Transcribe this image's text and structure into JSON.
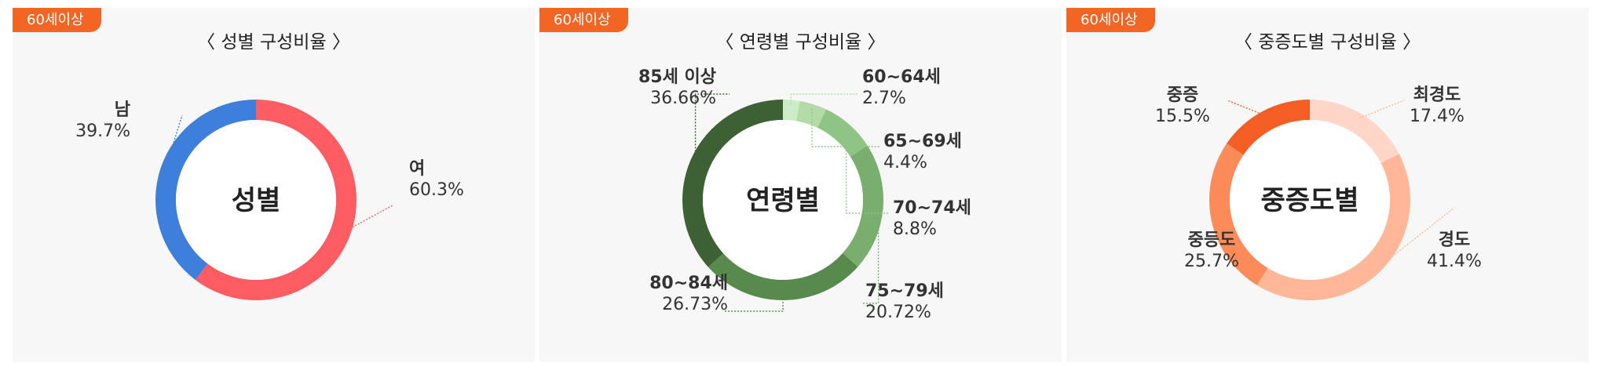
{
  "badge_label": "60세이상",
  "chart_data": [
    {
      "type": "pie",
      "title": "〈 성별 구성비율 〉",
      "center_label": "성별",
      "categories": [
        "여",
        "남"
      ],
      "values": [
        60.3,
        39.7
      ],
      "value_labels": [
        "60.3%",
        "39.7%"
      ],
      "colors": [
        "#fd5c63",
        "#3f7fdc"
      ]
    },
    {
      "type": "pie",
      "title": "〈 연령별 구성비율 〉",
      "center_label": "연령별",
      "categories": [
        "60~64세",
        "65~69세",
        "70~74세",
        "75~79세",
        "80~84세",
        "85세 이상"
      ],
      "values": [
        2.7,
        4.4,
        8.8,
        20.72,
        26.73,
        36.66
      ],
      "value_labels": [
        "2.7%",
        "4.4%",
        "8.8%",
        "20.72%",
        "26.73%",
        "36.66%"
      ],
      "colors": [
        "#cdebc6",
        "#b2dba8",
        "#8fc584",
        "#7aae6f",
        "#578a4c",
        "#3d6135"
      ]
    },
    {
      "type": "pie",
      "title": "〈 중증도별 구성비율 〉",
      "center_label": "중증도별",
      "categories": [
        "최경도",
        "경도",
        "중등도",
        "중증"
      ],
      "values": [
        17.4,
        41.4,
        25.7,
        15.5
      ],
      "value_labels": [
        "17.4%",
        "41.4%",
        "25.7%",
        "15.5%"
      ],
      "colors": [
        "#ffd6c7",
        "#ffb798",
        "#fd8b59",
        "#f45e24"
      ]
    }
  ]
}
